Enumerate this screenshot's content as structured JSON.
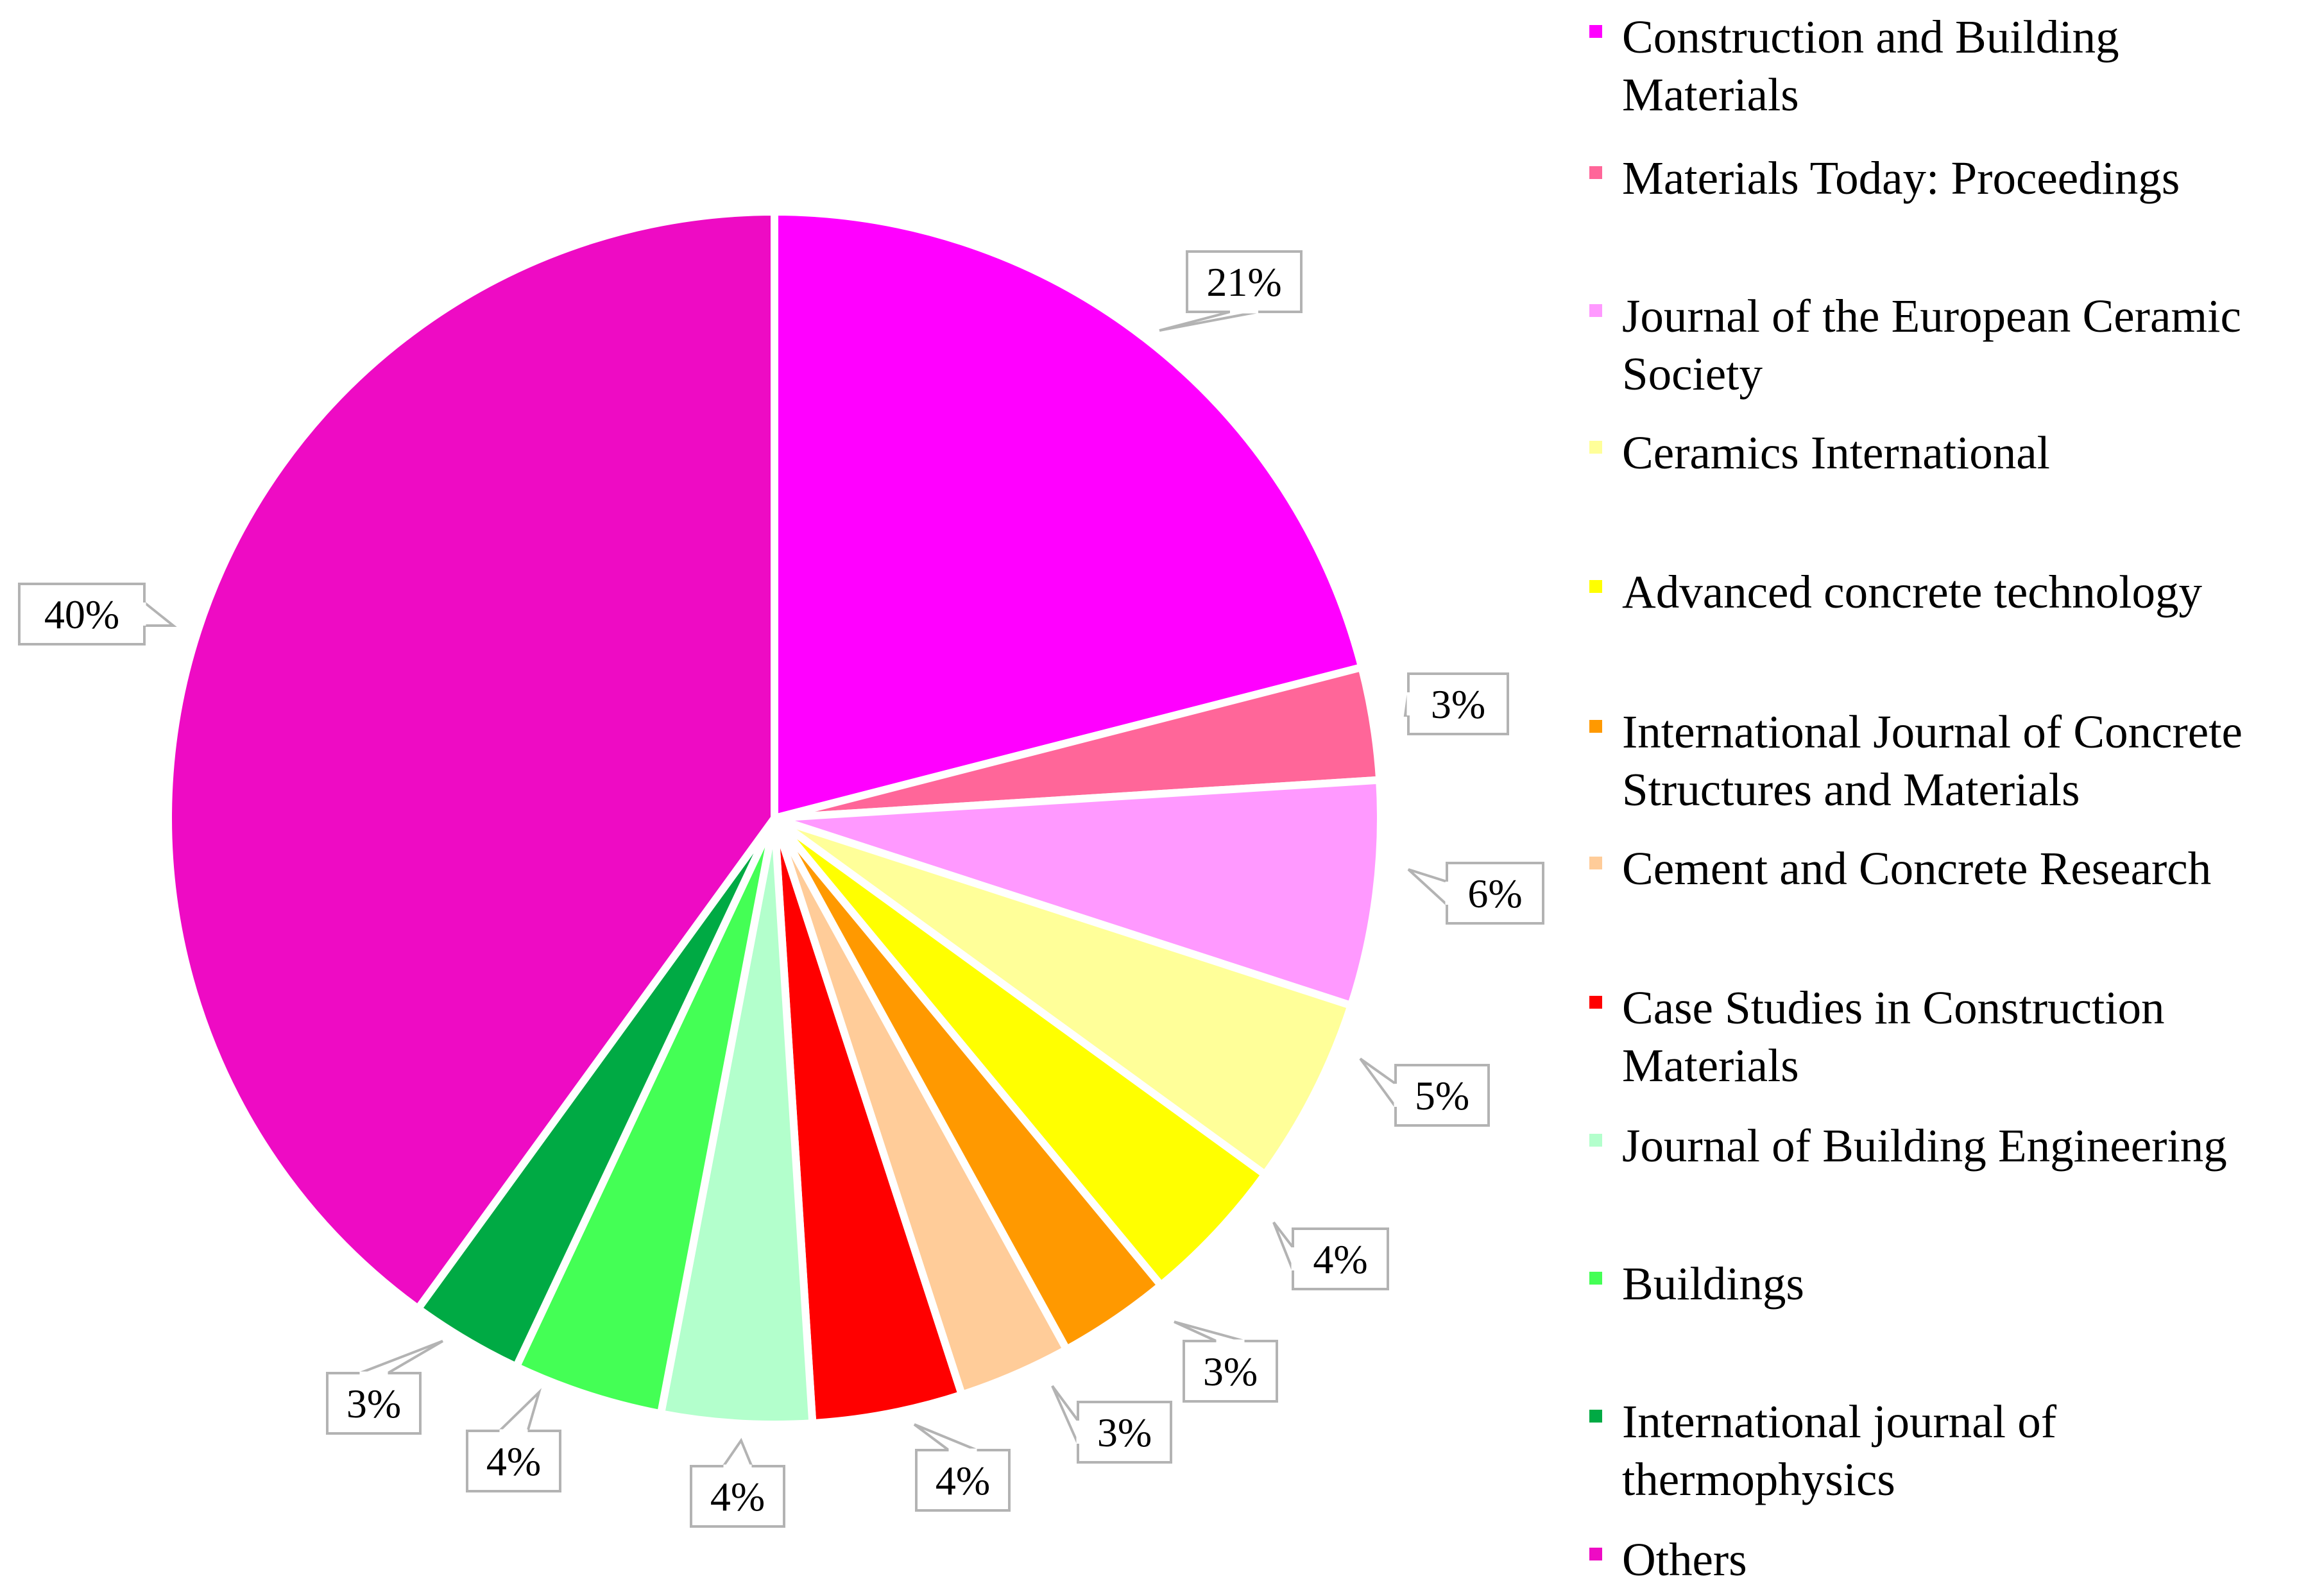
{
  "chart_data": {
    "type": "pie",
    "title": "",
    "slices": [
      {
        "label": "Construction and Building Materials",
        "value": 21,
        "display": "21%",
        "color": "#FF00FF"
      },
      {
        "label": "Materials Today: Proceedings",
        "value": 3,
        "display": "3%",
        "color": "#FF6699"
      },
      {
        "label": "Journal of the European Ceramic Society",
        "value": 6,
        "display": "6%",
        "color": "#FF99FF"
      },
      {
        "label": "Ceramics International",
        "value": 5,
        "display": "5%",
        "color": "#FFFF99"
      },
      {
        "label": "Advanced concrete technology",
        "value": 4,
        "display": "4%",
        "color": "#FFFF00"
      },
      {
        "label": "International Journal of Concrete Structures and Materials",
        "value": 3,
        "display": "3%",
        "color": "#FF9900"
      },
      {
        "label": "Cement and Concrete Research",
        "value": 3,
        "display": "3%",
        "color": "#FFCC99"
      },
      {
        "label": "Case Studies in Construction Materials",
        "value": 4,
        "display": "4%",
        "color": "#FF0000"
      },
      {
        "label": "Journal of Building Engineering",
        "value": 4,
        "display": "4%",
        "color": "#B3FFCC"
      },
      {
        "label": "Buildings",
        "value": 4,
        "display": "4%",
        "color": "#44FF55"
      },
      {
        "label": "International journal of thermophysics",
        "value": 3,
        "display": "3%",
        "color": "#00AA44"
      },
      {
        "label": "Others",
        "value": 40,
        "display": "40%",
        "color": "#EE0BC4"
      }
    ],
    "legend": {
      "position": "right",
      "items": [
        [
          "Construction and Building",
          "Materials"
        ],
        [
          "Materials Today: Proceedings"
        ],
        [
          "Journal of the European Ceramic",
          "Society"
        ],
        [
          "Ceramics International"
        ],
        [
          "Advanced concrete technology"
        ],
        [
          "International Journal of Concrete",
          "Structures and Materials"
        ],
        [
          "Cement and Concrete Research"
        ],
        [
          "Case Studies in Construction",
          "Materials"
        ],
        [
          "Journal of Building Engineering"
        ],
        [
          "Buildings"
        ],
        [
          "International journal of",
          "thermophysics"
        ],
        [
          "Others"
        ]
      ]
    },
    "start_angle": "12 o'clock",
    "direction": "clockwise",
    "label_style": "callout boxes outside slices"
  }
}
